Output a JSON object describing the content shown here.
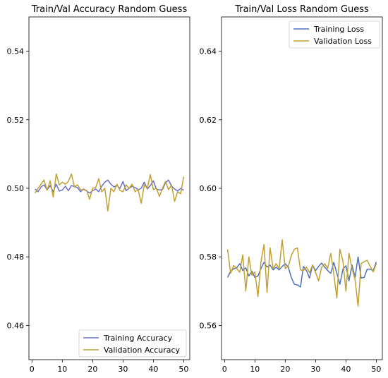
{
  "chart_data": [
    {
      "type": "line",
      "title": "Train/Val Accuracy Random Guess",
      "xlabel": "",
      "ylabel": "",
      "xlim": [
        -1,
        52
      ],
      "ylim": [
        0.45,
        0.55
      ],
      "xticks": [
        0,
        10,
        20,
        30,
        40,
        50
      ],
      "yticks": [
        0.46,
        0.48,
        0.5,
        0.52,
        0.54
      ],
      "ytick_labels": [
        "0.46",
        "0.48",
        "0.50",
        "0.52",
        "0.54"
      ],
      "grid": false,
      "legend_position": "lower right",
      "x": [
        1,
        2,
        3,
        4,
        5,
        6,
        7,
        8,
        9,
        10,
        11,
        12,
        13,
        14,
        15,
        16,
        17,
        18,
        19,
        20,
        21,
        22,
        23,
        24,
        25,
        26,
        27,
        28,
        29,
        30,
        31,
        32,
        33,
        34,
        35,
        36,
        37,
        38,
        39,
        40,
        41,
        42,
        43,
        44,
        45,
        46,
        47,
        48,
        49,
        50
      ],
      "series": [
        {
          "name": "Training Accuracy",
          "color": "#6a6fc8",
          "values": [
            0.4998,
            0.499,
            0.5004,
            0.501,
            0.4995,
            0.5008,
            0.499,
            0.5012,
            0.4992,
            0.4995,
            0.5006,
            0.4993,
            0.5008,
            0.5005,
            0.5002,
            0.499,
            0.4998,
            0.4992,
            0.4986,
            0.4993,
            0.4998,
            0.499,
            0.5006,
            0.5018,
            0.5024,
            0.5012,
            0.5004,
            0.5008,
            0.5,
            0.502,
            0.4993,
            0.5,
            0.5006,
            0.5002,
            0.4996,
            0.5,
            0.5018,
            0.4998,
            0.5008,
            0.5022,
            0.4998,
            0.4995,
            0.4996,
            0.5016,
            0.5024,
            0.5006,
            0.4998,
            0.4992,
            0.5,
            0.4994
          ]
        },
        {
          "name": "Validation Accuracy",
          "color": "#c0a030",
          "values": [
            0.4986,
            0.5,
            0.5012,
            0.5024,
            0.4994,
            0.5022,
            0.4974,
            0.5042,
            0.501,
            0.5018,
            0.5012,
            0.502,
            0.5042,
            0.5004,
            0.501,
            0.4996,
            0.4996,
            0.4994,
            0.4968,
            0.5,
            0.5002,
            0.5028,
            0.499,
            0.5,
            0.4934,
            0.5,
            0.499,
            0.5012,
            0.4994,
            0.499,
            0.501,
            0.5,
            0.5012,
            0.499,
            0.4996,
            0.4956,
            0.501,
            0.5,
            0.504,
            0.4996,
            0.5,
            0.4976,
            0.5,
            0.502,
            0.4996,
            0.501,
            0.4962,
            0.499,
            0.4984,
            0.5034
          ]
        }
      ]
    },
    {
      "type": "line",
      "title": "Train/Val Loss Random Guess",
      "xlabel": "",
      "ylabel": "",
      "xlim": [
        -1,
        52
      ],
      "ylim": [
        0.55,
        0.65
      ],
      "xticks": [
        0,
        10,
        20,
        30,
        40,
        50
      ],
      "yticks": [
        0.56,
        0.58,
        0.6,
        0.62,
        0.64
      ],
      "ytick_labels": [
        "0.56",
        "0.58",
        "0.60",
        "0.62",
        "0.64"
      ],
      "grid": false,
      "legend_position": "upper right",
      "x": [
        1,
        2,
        3,
        4,
        5,
        6,
        7,
        8,
        9,
        10,
        11,
        12,
        13,
        14,
        15,
        16,
        17,
        18,
        19,
        20,
        21,
        22,
        23,
        24,
        25,
        26,
        27,
        28,
        29,
        30,
        31,
        32,
        33,
        34,
        35,
        36,
        37,
        38,
        39,
        40,
        41,
        42,
        43,
        44,
        45,
        46,
        47,
        48,
        49,
        50
      ],
      "series": [
        {
          "name": "Training Loss",
          "color": "#4e72b8",
          "values": [
            0.574,
            0.5758,
            0.5765,
            0.5768,
            0.578,
            0.576,
            0.5768,
            0.5744,
            0.5758,
            0.574,
            0.5744,
            0.5766,
            0.5784,
            0.577,
            0.5776,
            0.5762,
            0.577,
            0.5762,
            0.5772,
            0.578,
            0.577,
            0.574,
            0.572,
            0.5718,
            0.5712,
            0.5772,
            0.576,
            0.5738,
            0.5776,
            0.576,
            0.5772,
            0.5782,
            0.577,
            0.576,
            0.5752,
            0.5784,
            0.5752,
            0.572,
            0.5764,
            0.5774,
            0.573,
            0.5776,
            0.574,
            0.58,
            0.5738,
            0.574,
            0.5764,
            0.5764,
            0.576,
            0.5785
          ]
        },
        {
          "name": "Validation Loss",
          "color": "#c0a030",
          "values": [
            0.5822,
            0.5752,
            0.5775,
            0.5766,
            0.5755,
            0.5806,
            0.57,
            0.58,
            0.5746,
            0.5756,
            0.5684,
            0.5786,
            0.5836,
            0.5696,
            0.5826,
            0.5766,
            0.578,
            0.5766,
            0.585,
            0.5766,
            0.5772,
            0.5804,
            0.5822,
            0.5826,
            0.5762,
            0.576,
            0.577,
            0.5754,
            0.5776,
            0.5754,
            0.573,
            0.577,
            0.578,
            0.5766,
            0.581,
            0.575,
            0.568,
            0.5822,
            0.5788,
            0.57,
            0.581,
            0.5766,
            0.5734,
            0.5656,
            0.578,
            0.5786,
            0.579,
            0.5772,
            0.5756,
            0.578
          ]
        }
      ]
    }
  ]
}
